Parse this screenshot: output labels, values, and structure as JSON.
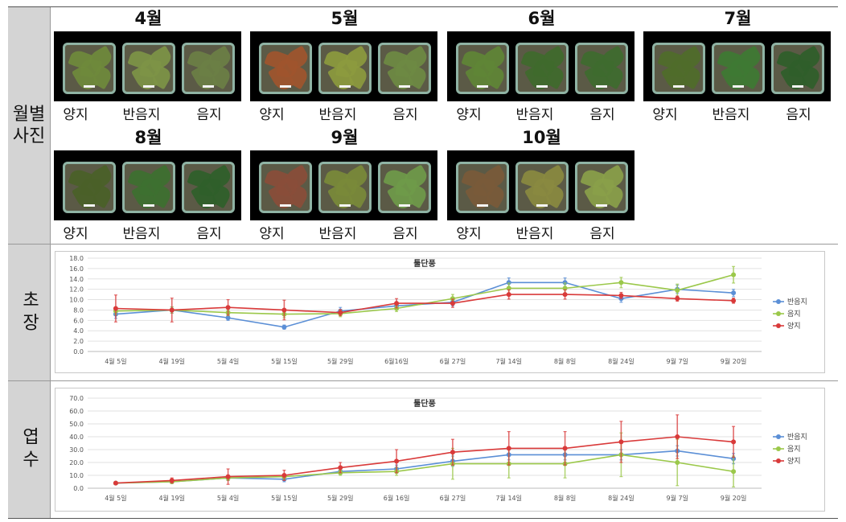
{
  "rows": {
    "photos_label": "월별\n사진",
    "height_label": "초장",
    "leaves_label": "엽수"
  },
  "months": [
    {
      "label": "4월",
      "captions": [
        "양지",
        "반음지",
        "음지"
      ],
      "tones": [
        "#6f8a3c",
        "#7d9446",
        "#6b7f45"
      ]
    },
    {
      "label": "5월",
      "captions": [
        "양지",
        "반음지",
        "음지"
      ],
      "tones": [
        "#a0552e",
        "#8c9a3e",
        "#6e8a43"
      ]
    },
    {
      "label": "6월",
      "captions": [
        "양지",
        "반음지",
        "음지"
      ],
      "tones": [
        "#5f8636",
        "#3f6a2c",
        "#3e6b2f"
      ]
    },
    {
      "label": "7월",
      "captions": [
        "양지",
        "반음지",
        "음지"
      ],
      "tones": [
        "#4f6d2a",
        "#3e7a33",
        "#2f5e2a"
      ]
    },
    {
      "label": "8월",
      "captions": [
        "양지",
        "반음지",
        "음지"
      ],
      "tones": [
        "#4a6128",
        "#3d7030",
        "#2f5f2a"
      ]
    },
    {
      "label": "9월",
      "captions": [
        "양지",
        "반음지",
        "음지"
      ],
      "tones": [
        "#8a4d3a",
        "#7a8a3a",
        "#6f9a4a"
      ]
    },
    {
      "label": "10월",
      "captions": [
        "양지",
        "반음지",
        "음지"
      ],
      "tones": [
        "#7a5a3a",
        "#8a8a40",
        "#8aa04a"
      ]
    }
  ],
  "chart_data": [
    {
      "type": "line",
      "title": "툴단풍",
      "categories": [
        "4월 5일",
        "4월 19일",
        "5월 4일",
        "5월 15일",
        "5월 29일",
        "6월16일",
        "6월 27일",
        "7월 14일",
        "8월 8일",
        "8월 24일",
        "9월 7일",
        "9월 20일"
      ],
      "ylim": [
        0,
        18
      ],
      "yticks": [
        "0.0",
        "2.0",
        "4.0",
        "6.0",
        "8.0",
        "10.0",
        "12.0",
        "14.0",
        "16.0",
        "18.0"
      ],
      "grid": true,
      "legend": "right",
      "series": [
        {
          "name": "반음지",
          "color": "#5b8fd6",
          "values": [
            7.2,
            8.0,
            6.5,
            4.7,
            7.8,
            8.8,
            9.5,
            13.3,
            13.3,
            10.2,
            12.0,
            11.3
          ],
          "errors": [
            0.8,
            0.6,
            0.5,
            0.4,
            0.7,
            0.6,
            0.7,
            0.9,
            0.9,
            0.7,
            0.8,
            0.7
          ]
        },
        {
          "name": "음지",
          "color": "#9bc84a",
          "values": [
            7.8,
            8.0,
            7.5,
            7.2,
            7.3,
            8.3,
            10.2,
            12.2,
            12.2,
            13.3,
            11.8,
            14.8
          ],
          "errors": [
            0.7,
            0.6,
            0.6,
            0.7,
            0.6,
            0.6,
            0.8,
            1.0,
            1.0,
            1.0,
            1.2,
            1.6
          ]
        },
        {
          "name": "양지",
          "color": "#d93a3a",
          "values": [
            8.3,
            8.0,
            8.5,
            8.0,
            7.5,
            9.3,
            9.3,
            11.0,
            11.0,
            10.8,
            10.2,
            9.8
          ],
          "errors": [
            2.6,
            2.3,
            1.5,
            1.9,
            0.6,
            0.9,
            0.8,
            0.9,
            0.9,
            0.6,
            0.5,
            0.5
          ]
        }
      ]
    },
    {
      "type": "line",
      "title": "툴단풍",
      "categories": [
        "4월 5일",
        "4월 19일",
        "5월 4일",
        "5월 15일",
        "5월 29일",
        "6월 16일",
        "6월 27일",
        "7월 14일",
        "8월 8일",
        "8월 24일",
        "9월 7일",
        "9월 20일"
      ],
      "ylim": [
        0,
        70
      ],
      "yticks": [
        "0.0",
        "10.0",
        "20.0",
        "30.0",
        "40.0",
        "50.0",
        "60.0",
        "70.0"
      ],
      "grid": true,
      "legend": "right",
      "series": [
        {
          "name": "반음지",
          "color": "#5b8fd6",
          "values": [
            4,
            5,
            8,
            7,
            13,
            15,
            21,
            26,
            26,
            26,
            29,
            23
          ],
          "errors": [
            1,
            1,
            2,
            2,
            2,
            3,
            4,
            4,
            4,
            4,
            4,
            4
          ]
        },
        {
          "name": "음지",
          "color": "#9bc84a",
          "values": [
            4,
            5,
            8,
            9,
            12,
            13,
            19,
            19,
            19,
            26,
            20,
            13
          ],
          "errors": [
            1,
            1,
            2,
            2,
            2,
            3,
            12,
            11,
            11,
            17,
            18,
            12
          ]
        },
        {
          "name": "양지",
          "color": "#d93a3a",
          "values": [
            4,
            6,
            9,
            10,
            16,
            21,
            28,
            31,
            31,
            36,
            40,
            36
          ],
          "errors": [
            1,
            2,
            6,
            4,
            4,
            9,
            10,
            13,
            13,
            16,
            17,
            12
          ]
        }
      ]
    }
  ]
}
